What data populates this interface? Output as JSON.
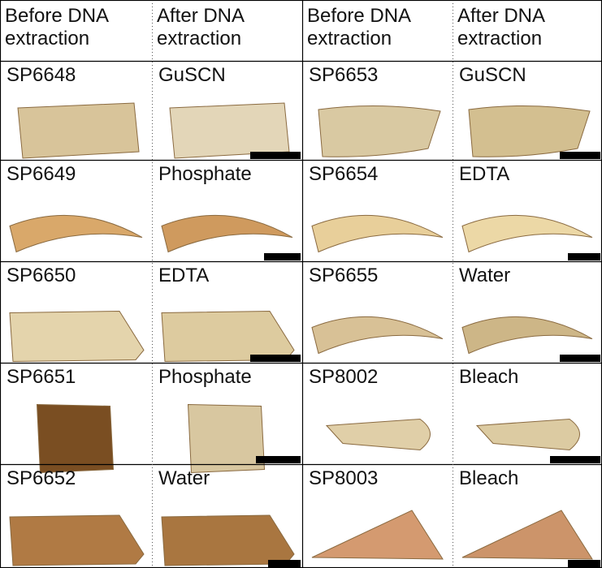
{
  "table": {
    "header": [
      "Before DNA extraction",
      "After DNA extraction",
      "Before DNA extraction",
      "After DNA extraction"
    ],
    "rows": [
      [
        "SP6648",
        "GuSCN",
        "SP6653",
        "GuSCN"
      ],
      [
        "SP6649",
        "Phosphate",
        "SP6654",
        "EDTA"
      ],
      [
        "SP6650",
        "EDTA",
        "SP6655",
        "Water"
      ],
      [
        "SP6651",
        "Phosphate",
        "SP8002",
        "Bleach"
      ],
      [
        "SP6652",
        "Water",
        "SP8003",
        "Bleach"
      ]
    ]
  }
}
